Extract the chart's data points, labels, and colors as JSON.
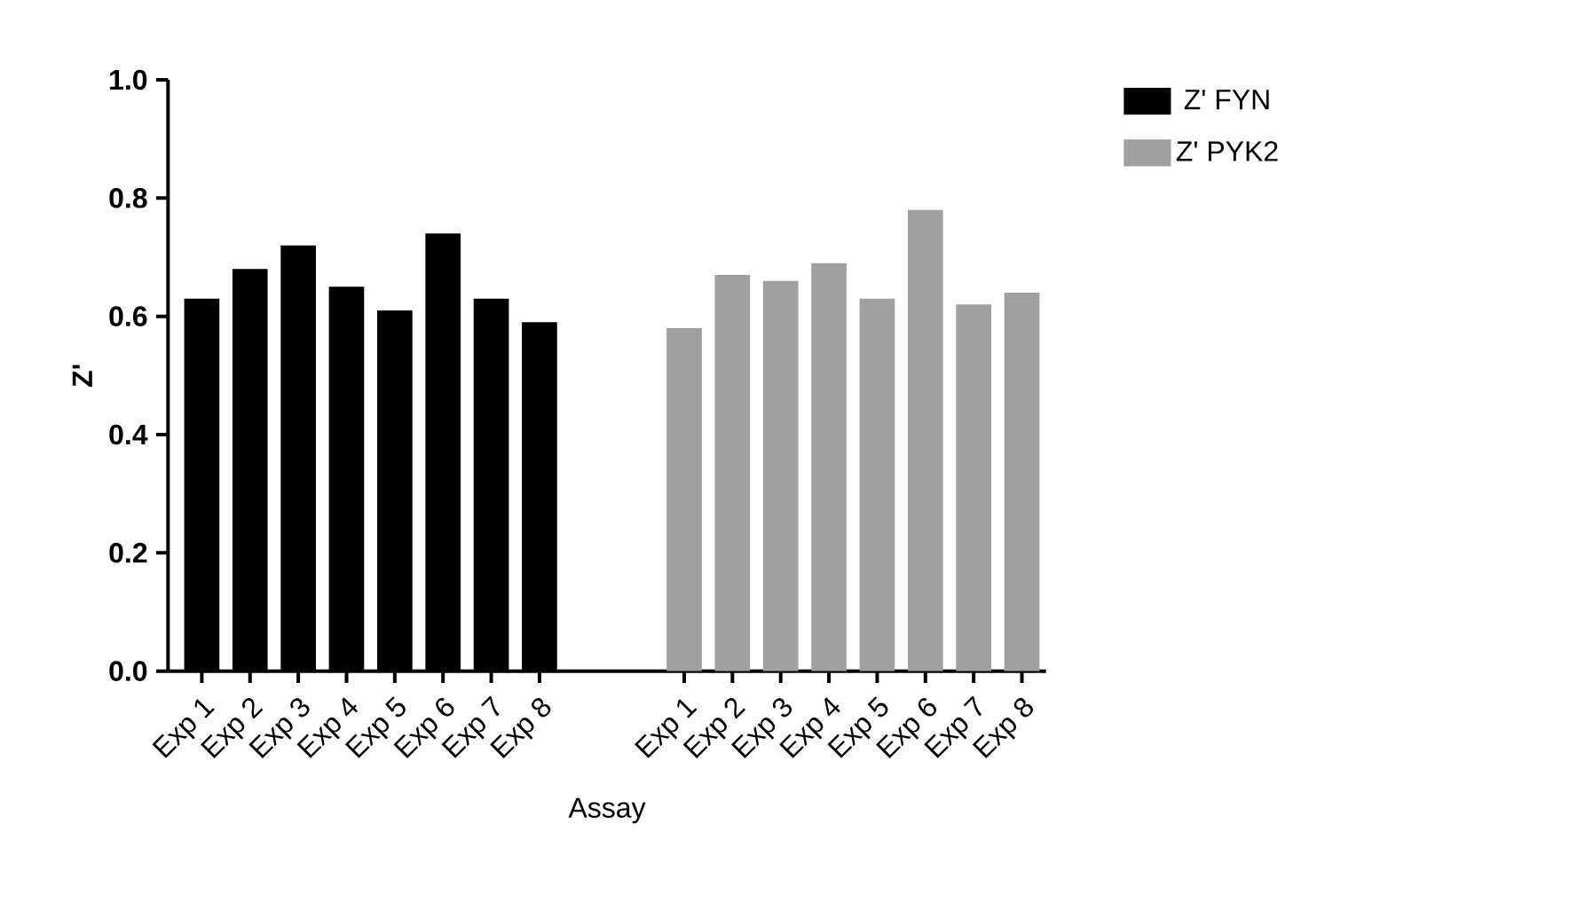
{
  "chart_data": {
    "type": "bar",
    "xlabel": "Assay",
    "ylabel": "Z'",
    "categories": [
      "Exp 1",
      "Exp 2",
      "Exp 3",
      "Exp 4",
      "Exp 5",
      "Exp 6",
      "Exp 7",
      "Exp 8",
      null,
      null,
      "Exp 1",
      "Exp 2",
      "Exp 3",
      "Exp 4",
      "Exp 5",
      "Exp 6",
      "Exp 7",
      "Exp 8"
    ],
    "series": [
      {
        "name": "Z' FYN",
        "color": "#000000",
        "values": [
          0.63,
          0.68,
          0.72,
          0.65,
          0.61,
          0.74,
          0.63,
          0.59,
          null,
          null,
          null,
          null,
          null,
          null,
          null,
          null,
          null,
          null
        ]
      },
      {
        "name": "Z' PYK2",
        "color": "#a0a0a0",
        "values": [
          null,
          null,
          null,
          null,
          null,
          null,
          null,
          null,
          null,
          null,
          0.58,
          0.67,
          0.66,
          0.69,
          0.63,
          0.78,
          0.62,
          0.64
        ]
      }
    ],
    "ylim": [
      0,
      1.0
    ],
    "yticks": [
      {
        "value": 0,
        "label": "0.0"
      },
      {
        "value": 0.2,
        "label": "0.2"
      },
      {
        "value": 0.4,
        "label": "0.4"
      },
      {
        "value": 0.6,
        "label": "0.6"
      },
      {
        "value": 0.8,
        "label": "0.8"
      },
      {
        "value": 1.0,
        "label": "1.0"
      }
    ],
    "legend": "top right"
  }
}
